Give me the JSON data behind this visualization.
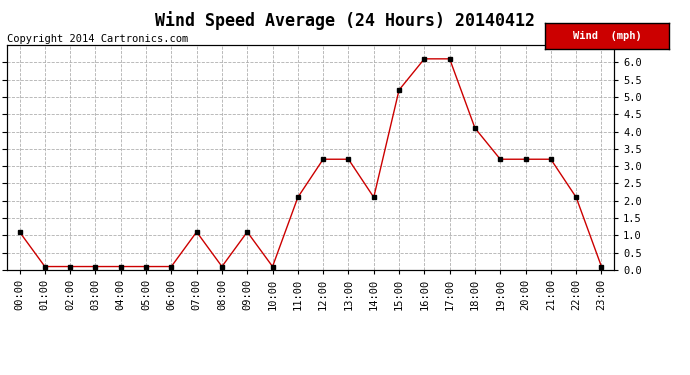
{
  "title": "Wind Speed Average (24 Hours) 20140412",
  "copyright": "Copyright 2014 Cartronics.com",
  "x_labels": [
    "00:00",
    "01:00",
    "02:00",
    "03:00",
    "04:00",
    "05:00",
    "06:00",
    "07:00",
    "08:00",
    "09:00",
    "10:00",
    "11:00",
    "12:00",
    "13:00",
    "14:00",
    "15:00",
    "16:00",
    "17:00",
    "18:00",
    "19:00",
    "20:00",
    "21:00",
    "22:00",
    "23:00"
  ],
  "wind_values": [
    1.1,
    0.1,
    0.1,
    0.1,
    0.1,
    0.1,
    0.1,
    1.1,
    0.1,
    1.1,
    0.1,
    2.1,
    3.2,
    3.2,
    2.1,
    5.2,
    6.1,
    6.1,
    4.1,
    3.2,
    3.2,
    3.2,
    2.1,
    0.1
  ],
  "ylim": [
    0.0,
    6.5
  ],
  "yticks": [
    0.0,
    0.5,
    1.0,
    1.5,
    2.0,
    2.5,
    3.0,
    3.5,
    4.0,
    4.5,
    5.0,
    5.5,
    6.0
  ],
  "line_color": "#cc0000",
  "marker_color": "#000000",
  "legend_label": "Wind  (mph)",
  "legend_bg": "#cc0000",
  "legend_text_color": "#ffffff",
  "background_color": "#ffffff",
  "grid_color": "#b0b0b0",
  "title_fontsize": 12,
  "copyright_fontsize": 7.5,
  "tick_fontsize": 7.5,
  "xlabel_fontsize": 7.5
}
